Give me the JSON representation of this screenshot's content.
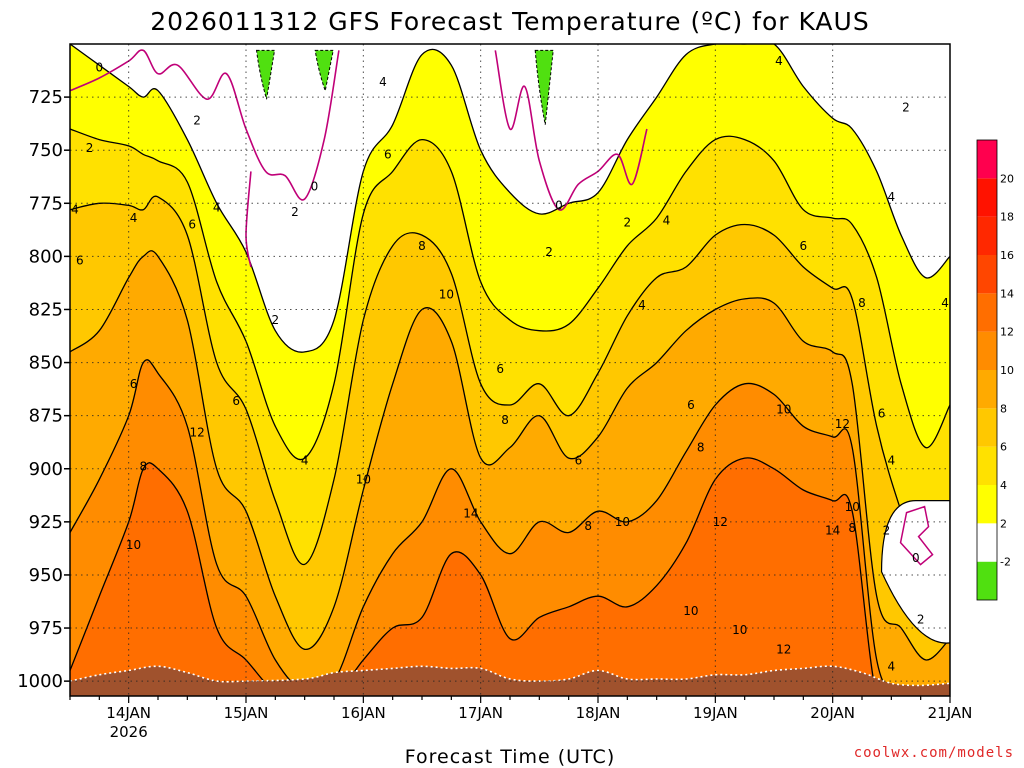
{
  "chart_data": {
    "type": "heatmap",
    "title": "2026011312 GFS Forecast Temperature (ºC) for KAUS",
    "xlabel": "Forecast Time (UTC)",
    "ylabel": "Pressure (hPa)",
    "x_ticks": [
      {
        "label": "14JAN",
        "sub": "2026",
        "hour": 12
      },
      {
        "label": "15JAN",
        "sub": "",
        "hour": 36
      },
      {
        "label": "16JAN",
        "sub": "",
        "hour": 60
      },
      {
        "label": "17JAN",
        "sub": "",
        "hour": 84
      },
      {
        "label": "18JAN",
        "sub": "",
        "hour": 108
      },
      {
        "label": "19JAN",
        "sub": "",
        "hour": 132
      },
      {
        "label": "20JAN",
        "sub": "",
        "hour": 156
      },
      {
        "label": "21JAN",
        "sub": "",
        "hour": 180
      }
    ],
    "x_range_hours": [
      0,
      180
    ],
    "y_ticks": [
      725,
      750,
      775,
      800,
      825,
      850,
      875,
      900,
      925,
      950,
      975,
      1000
    ],
    "y_range": [
      700,
      1007
    ],
    "colorbar": {
      "levels": [
        -2,
        2,
        4,
        6,
        8,
        10,
        12,
        14,
        16,
        18,
        20
      ],
      "colors": [
        "#50e010",
        "#ffffff",
        "#ffff00",
        "#ffe100",
        "#ffc800",
        "#ffaa00",
        "#ff8c00",
        "#ff6e00",
        "#ff4600",
        "#ff2800",
        "#ff1200",
        "#ff004e"
      ]
    },
    "surface_color": "#a0522d",
    "negative_contour_color": "#c00078",
    "columns": [
      {
        "hour": 0,
        "levels": [
          700,
          740,
          778,
          845,
          930,
          995
        ]
      },
      {
        "hour": 6,
        "levels": [
          710,
          745,
          775,
          835,
          905,
          960
        ]
      },
      {
        "hour": 12,
        "levels": [
          720,
          748,
          776,
          810,
          875,
          925
        ]
      },
      {
        "hour": 15,
        "levels": [
          725,
          752,
          778,
          800,
          850,
          900
        ]
      },
      {
        "hour": 18,
        "levels": [
          722,
          755,
          772,
          800,
          855,
          900
        ]
      },
      {
        "hour": 24,
        "levels": [
          745,
          765,
          790,
          830,
          880,
          920
        ]
      },
      {
        "hour": 30,
        "levels": [
          775,
          812,
          850,
          900,
          945,
          975
        ]
      },
      {
        "hour": 36,
        "levels": [
          798,
          840,
          872,
          920,
          960,
          990
        ]
      },
      {
        "hour": 42,
        "levels": [
          835,
          880,
          915,
          960,
          990,
          1005
        ]
      },
      {
        "hour": 48,
        "levels": [
          845,
          895,
          945,
          985,
          1005,
          1007
        ]
      },
      {
        "hour": 54,
        "levels": [
          830,
          860,
          905,
          965,
          1000,
          1007
        ]
      },
      {
        "hour": 60,
        "levels": [
          760,
          780,
          830,
          910,
          965,
          990
        ]
      },
      {
        "hour": 66,
        "levels": [
          738,
          760,
          795,
          860,
          940,
          975
        ]
      },
      {
        "hour": 72,
        "levels": [
          705,
          745,
          790,
          825,
          925,
          970
        ]
      },
      {
        "hour": 78,
        "levels": [
          710,
          760,
          808,
          840,
          900,
          940
        ]
      },
      {
        "hour": 84,
        "levels": [
          750,
          812,
          860,
          895,
          925,
          950
        ]
      },
      {
        "hour": 90,
        "levels": [
          770,
          830,
          870,
          890,
          940,
          980
        ]
      },
      {
        "hour": 96,
        "levels": [
          780,
          835,
          860,
          875,
          925,
          970
        ]
      },
      {
        "hour": 102,
        "levels": [
          775,
          832,
          875,
          895,
          930,
          965
        ]
      },
      {
        "hour": 108,
        "levels": [
          770,
          815,
          855,
          885,
          920,
          960
        ]
      },
      {
        "hour": 114,
        "levels": [
          745,
          795,
          828,
          862,
          925,
          965
        ]
      },
      {
        "hour": 120,
        "levels": [
          725,
          782,
          810,
          850,
          915,
          955
        ]
      },
      {
        "hour": 126,
        "levels": [
          705,
          760,
          805,
          835,
          892,
          935
        ]
      },
      {
        "hour": 132,
        "levels": [
          700,
          745,
          790,
          825,
          870,
          905
        ]
      },
      {
        "hour": 138,
        "levels": [
          700,
          745,
          785,
          820,
          860,
          895
        ]
      },
      {
        "hour": 144,
        "levels": [
          700,
          755,
          790,
          822,
          865,
          900
        ]
      },
      {
        "hour": 150,
        "levels": [
          720,
          778,
          805,
          840,
          880,
          910
        ]
      },
      {
        "hour": 156,
        "levels": [
          735,
          782,
          815,
          845,
          885,
          915
        ]
      },
      {
        "hour": 160,
        "levels": [
          740,
          785,
          820,
          860,
          890,
          920
        ]
      },
      {
        "hour": 165,
        "levels": [
          760,
          810,
          880,
          960,
          990,
          1007
        ]
      },
      {
        "hour": 170,
        "levels": [
          790,
          860,
          920,
          975,
          1005,
          1007
        ]
      },
      {
        "hour": 175,
        "levels": [
          810,
          890,
          950,
          990,
          1007,
          1007
        ]
      },
      {
        "hour": 180,
        "levels": [
          800,
          870,
          940,
          980,
          1007,
          1007
        ]
      }
    ],
    "surface": [
      {
        "hour": 0,
        "p": 1000
      },
      {
        "hour": 6,
        "p": 997
      },
      {
        "hour": 12,
        "p": 995
      },
      {
        "hour": 18,
        "p": 993
      },
      {
        "hour": 24,
        "p": 996
      },
      {
        "hour": 30,
        "p": 1000
      },
      {
        "hour": 36,
        "p": 1000
      },
      {
        "hour": 48,
        "p": 999
      },
      {
        "hour": 54,
        "p": 996
      },
      {
        "hour": 60,
        "p": 995
      },
      {
        "hour": 66,
        "p": 994
      },
      {
        "hour": 72,
        "p": 993
      },
      {
        "hour": 78,
        "p": 994
      },
      {
        "hour": 84,
        "p": 994
      },
      {
        "hour": 90,
        "p": 999
      },
      {
        "hour": 96,
        "p": 1000
      },
      {
        "hour": 102,
        "p": 999
      },
      {
        "hour": 108,
        "p": 995
      },
      {
        "hour": 114,
        "p": 999
      },
      {
        "hour": 120,
        "p": 999
      },
      {
        "hour": 126,
        "p": 999
      },
      {
        "hour": 132,
        "p": 997
      },
      {
        "hour": 138,
        "p": 997
      },
      {
        "hour": 144,
        "p": 995
      },
      {
        "hour": 150,
        "p": 994
      },
      {
        "hour": 156,
        "p": 993
      },
      {
        "hour": 162,
        "p": 996
      },
      {
        "hour": 168,
        "p": 1001
      },
      {
        "hour": 174,
        "p": 1002
      },
      {
        "hour": 180,
        "p": 1001
      }
    ],
    "green_patches": [
      {
        "hour": 40,
        "top": 703,
        "bottom": 726
      },
      {
        "hour": 52,
        "top": 703,
        "bottom": 722
      },
      {
        "hour": 97,
        "top": 703,
        "bottom": 738
      }
    ],
    "cold_pocket": {
      "hour_start": 166,
      "hour_end": 180,
      "top": 915,
      "bottom": 982
    },
    "contour_labels": [
      {
        "text": "0",
        "hour": 6,
        "p": 711
      },
      {
        "text": "2",
        "hour": 26,
        "p": 736
      },
      {
        "text": "2",
        "hour": 4,
        "p": 749
      },
      {
        "text": "4",
        "hour": 1,
        "p": 778
      },
      {
        "text": "4",
        "hour": 13,
        "p": 782
      },
      {
        "text": "4",
        "hour": 30,
        "p": 777
      },
      {
        "text": "6",
        "hour": 2,
        "p": 802
      },
      {
        "text": "6",
        "hour": 25,
        "p": 785
      },
      {
        "text": "2",
        "hour": 46,
        "p": 779
      },
      {
        "text": "0",
        "hour": 50,
        "p": 767
      },
      {
        "text": "4",
        "hour": 64,
        "p": 718
      },
      {
        "text": "6",
        "hour": 65,
        "p": 752
      },
      {
        "text": "8",
        "hour": 72,
        "p": 795
      },
      {
        "text": "10",
        "hour": 77,
        "p": 818
      },
      {
        "text": "2",
        "hour": 42,
        "p": 830
      },
      {
        "text": "6",
        "hour": 13,
        "p": 860
      },
      {
        "text": "6",
        "hour": 34,
        "p": 868
      },
      {
        "text": "4",
        "hour": 48,
        "p": 896
      },
      {
        "text": "12",
        "hour": 26,
        "p": 883
      },
      {
        "text": "8",
        "hour": 15,
        "p": 899
      },
      {
        "text": "10",
        "hour": 13,
        "p": 936
      },
      {
        "text": "10",
        "hour": 60,
        "p": 905
      },
      {
        "text": "6",
        "hour": 88,
        "p": 853
      },
      {
        "text": "8",
        "hour": 89,
        "p": 877
      },
      {
        "text": "14",
        "hour": 82,
        "p": 921
      },
      {
        "text": "0",
        "hour": 100,
        "p": 776
      },
      {
        "text": "2",
        "hour": 98,
        "p": 798
      },
      {
        "text": "2",
        "hour": 114,
        "p": 784
      },
      {
        "text": "4",
        "hour": 122,
        "p": 783
      },
      {
        "text": "4",
        "hour": 117,
        "p": 823
      },
      {
        "text": "6",
        "hour": 104,
        "p": 896
      },
      {
        "text": "8",
        "hour": 106,
        "p": 927
      },
      {
        "text": "10",
        "hour": 113,
        "p": 925
      },
      {
        "text": "6",
        "hour": 127,
        "p": 870
      },
      {
        "text": "8",
        "hour": 129,
        "p": 890
      },
      {
        "text": "12",
        "hour": 133,
        "p": 925
      },
      {
        "text": "10",
        "hour": 127,
        "p": 967
      },
      {
        "text": "10",
        "hour": 137,
        "p": 976
      },
      {
        "text": "10",
        "hour": 146,
        "p": 872
      },
      {
        "text": "12",
        "hour": 146,
        "p": 985
      },
      {
        "text": "4",
        "hour": 145,
        "p": 708
      },
      {
        "text": "6",
        "hour": 150,
        "p": 795
      },
      {
        "text": "8",
        "hour": 162,
        "p": 822
      },
      {
        "text": "12",
        "hour": 158,
        "p": 879
      },
      {
        "text": "14",
        "hour": 156,
        "p": 929
      },
      {
        "text": "10",
        "hour": 160,
        "p": 918
      },
      {
        "text": "8",
        "hour": 160,
        "p": 928
      },
      {
        "text": "6",
        "hour": 166,
        "p": 874
      },
      {
        "text": "4",
        "hour": 168,
        "p": 896
      },
      {
        "text": "2",
        "hour": 167,
        "p": 929
      },
      {
        "text": "4",
        "hour": 168,
        "p": 772
      },
      {
        "text": "2",
        "hour": 171,
        "p": 730
      },
      {
        "text": "0",
        "hour": 173,
        "p": 942
      },
      {
        "text": "2",
        "hour": 174,
        "p": 971
      },
      {
        "text": "4",
        "hour": 168,
        "p": 993
      },
      {
        "text": "4",
        "hour": 179,
        "p": 822
      }
    ]
  },
  "credit": {
    "text": "coolwx.com/models",
    "color": "#e02828"
  }
}
